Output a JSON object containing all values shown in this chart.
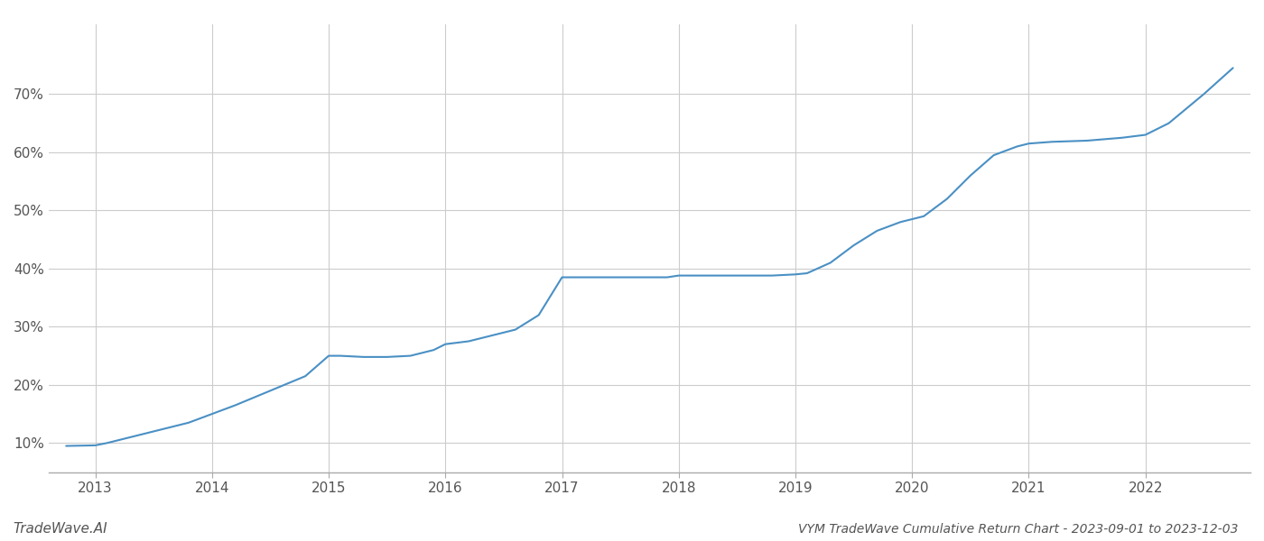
{
  "title": "VYM TradeWave Cumulative Return Chart - 2023-09-01 to 2023-12-03",
  "watermark": "TradeWave.AI",
  "line_color": "#4a90c4",
  "background_color": "#ffffff",
  "grid_color": "#cccccc",
  "x_values": [
    2012.75,
    2013.0,
    2013.1,
    2013.2,
    2013.4,
    2013.6,
    2013.8,
    2014.0,
    2014.2,
    2014.5,
    2014.8,
    2015.0,
    2015.1,
    2015.3,
    2015.5,
    2015.7,
    2015.9,
    2016.0,
    2016.2,
    2016.4,
    2016.6,
    2016.8,
    2017.0,
    2017.1,
    2017.3,
    2017.5,
    2017.7,
    2017.9,
    2018.0,
    2018.2,
    2018.5,
    2018.8,
    2019.0,
    2019.1,
    2019.3,
    2019.5,
    2019.7,
    2019.9,
    2020.0,
    2020.1,
    2020.3,
    2020.5,
    2020.7,
    2020.9,
    2021.0,
    2021.2,
    2021.5,
    2021.8,
    2022.0,
    2022.2,
    2022.5,
    2022.75
  ],
  "y_values": [
    9.5,
    9.6,
    10.0,
    10.5,
    11.5,
    12.5,
    13.5,
    15.0,
    16.5,
    19.0,
    21.5,
    25.0,
    25.0,
    24.8,
    24.8,
    25.0,
    26.0,
    27.0,
    27.5,
    28.5,
    29.5,
    32.0,
    38.5,
    38.5,
    38.5,
    38.5,
    38.5,
    38.5,
    38.8,
    38.8,
    38.8,
    38.8,
    39.0,
    39.2,
    41.0,
    44.0,
    46.5,
    48.0,
    48.5,
    49.0,
    52.0,
    56.0,
    59.5,
    61.0,
    61.5,
    61.8,
    62.0,
    62.5,
    63.0,
    65.0,
    70.0,
    74.5
  ],
  "xlim": [
    2012.6,
    2022.9
  ],
  "ylim": [
    5,
    82
  ],
  "yticks": [
    10,
    20,
    30,
    40,
    50,
    60,
    70
  ],
  "xticks": [
    2013,
    2014,
    2015,
    2016,
    2017,
    2018,
    2019,
    2020,
    2021,
    2022
  ],
  "line_width": 1.5,
  "title_fontsize": 10,
  "watermark_fontsize": 11,
  "tick_fontsize": 11,
  "tick_color": "#555555",
  "spine_color": "#aaaaaa"
}
